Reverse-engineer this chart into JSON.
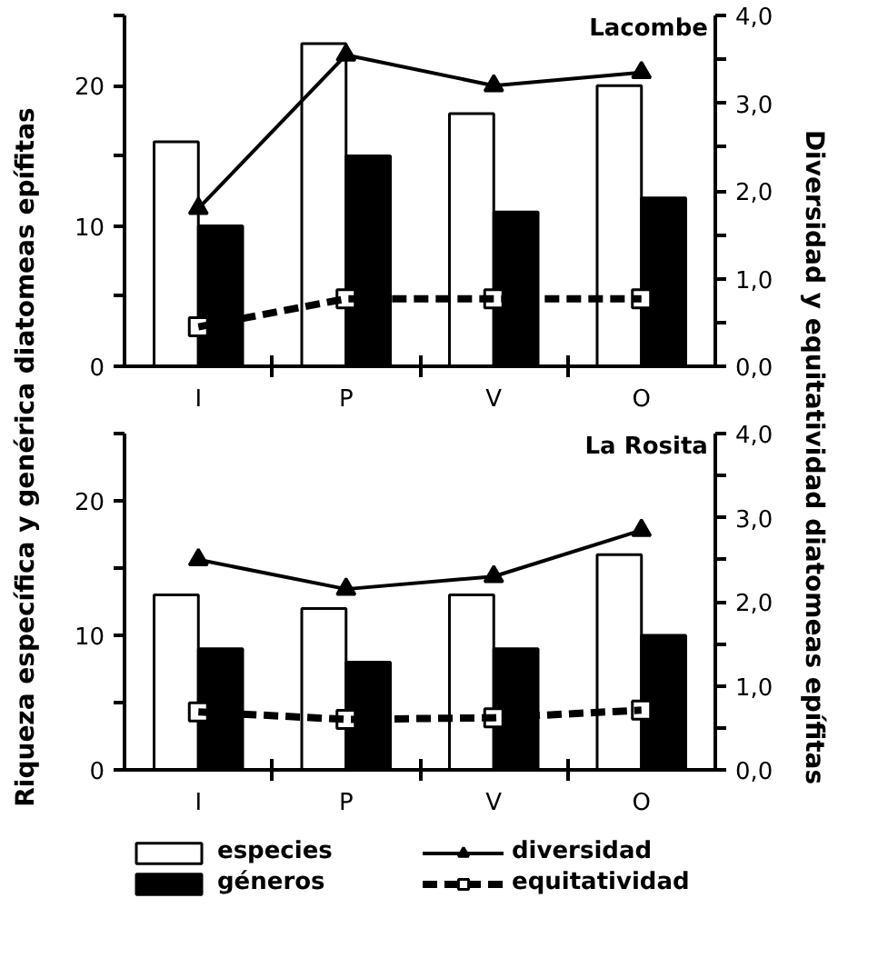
{
  "chart_data": [
    {
      "type": "bar",
      "title": "Lacombe",
      "ylabel": "Riqueza específica y genérica diatomeas epífitas",
      "y2label": "Diversidad y equitatividad diatomeas epífitas",
      "categories": [
        "I",
        "P",
        "V",
        "O"
      ],
      "series": [
        {
          "name": "especies",
          "color": "#ffffff",
          "values": [
            16,
            23,
            18,
            20
          ]
        },
        {
          "name": "géneros",
          "color": "#000000",
          "values": [
            10,
            15,
            11,
            12
          ]
        },
        {
          "name": "diversidad",
          "type": "line",
          "axis": "y2",
          "color": "#000000",
          "marker": "triangle",
          "line_style": "solid",
          "values": [
            1.8,
            3.55,
            3.2,
            3.35
          ]
        },
        {
          "name": "equitatividad",
          "type": "line",
          "axis": "y2",
          "color": "#000000",
          "marker": "square",
          "line_style": "dashed",
          "values": [
            0.45,
            0.77,
            0.77,
            0.77
          ]
        }
      ],
      "ylim": [
        0,
        25
      ],
      "yticks": [
        0,
        {
          "value": 5,
          "label": null
        },
        10,
        {
          "value": 15,
          "label": null
        },
        20,
        {
          "value": 25,
          "label": null
        }
      ],
      "y2lim": [
        0,
        4
      ],
      "y2ticks": [
        {
          "value": 0,
          "label": "0,0"
        },
        {
          "value": 0.5,
          "label": null
        },
        {
          "value": 1,
          "label": "1,0"
        },
        {
          "value": 1.5,
          "label": null
        },
        {
          "value": 2,
          "label": "2,0"
        },
        {
          "value": 2.5,
          "label": null
        },
        {
          "value": 3,
          "label": "3,0"
        },
        {
          "value": 3.5,
          "label": null
        },
        {
          "value": 4,
          "label": "4,0"
        }
      ],
      "grid": false,
      "legend": "bottom"
    },
    {
      "type": "bar",
      "title": "La Rosita",
      "categories": [
        "I",
        "P",
        "V",
        "O"
      ],
      "series": [
        {
          "color": "#ffffff",
          "values": [
            13,
            12,
            13,
            16
          ]
        },
        {
          "color": "#000000",
          "values": [
            9,
            8,
            9,
            10
          ]
        },
        {
          "type": "line",
          "axis": "y2",
          "color": "#000000",
          "marker": "triangle",
          "line_style": "solid",
          "values": [
            2.5,
            2.15,
            2.3,
            2.85
          ]
        },
        {
          "type": "line",
          "axis": "y2",
          "color": "#000000",
          "marker": "square",
          "line_style": "dashed",
          "values": [
            0.69,
            0.6,
            0.62,
            0.71
          ]
        }
      ],
      "ylim": [
        0,
        25
      ],
      "yticks": [
        0,
        {
          "value": 5,
          "label": null
        },
        10,
        {
          "value": 15,
          "label": null
        },
        20,
        {
          "value": 25,
          "label": null
        }
      ],
      "y2lim": [
        0,
        4
      ],
      "y2ticks": [
        {
          "value": 0,
          "label": "0,0"
        },
        {
          "value": 0.5,
          "label": null
        },
        {
          "value": 1,
          "label": "1,0"
        },
        {
          "value": 1.5,
          "label": null
        },
        {
          "value": 2,
          "label": "2,0"
        },
        {
          "value": 2.5,
          "label": null
        },
        {
          "value": 3,
          "label": "3,0"
        },
        {
          "value": 3.5,
          "label": null
        },
        {
          "value": 4,
          "label": "4,0"
        }
      ],
      "grid": false
    }
  ]
}
